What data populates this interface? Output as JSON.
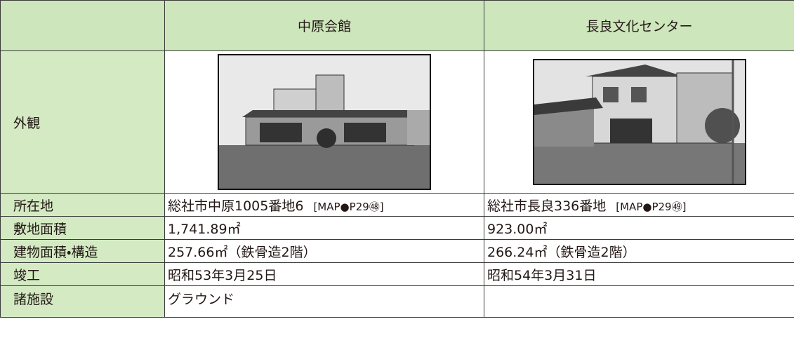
{
  "table": {
    "columns": [
      "中原会館",
      "長良文化センター"
    ],
    "rows": [
      {
        "label": "外観"
      },
      {
        "label": "所在地",
        "cells": [
          {
            "text": "総社市中原1005番地6",
            "map": "[MAP●P29㊽]"
          },
          {
            "text": "総社市長良336番地",
            "map": "[MAP●P29㊾]"
          }
        ]
      },
      {
        "label": "敷地面積",
        "cells": [
          "1,741.89㎡",
          "923.00㎡"
        ]
      },
      {
        "label": "建物面積・構造",
        "cells": [
          "257.66㎡（鉄骨造2階）",
          "266.24㎡（鉄骨造2階）"
        ]
      },
      {
        "label": "竣工",
        "cells": [
          "昭和53年3月25日",
          "昭和54年3月31日"
        ]
      },
      {
        "label": "諸施設",
        "cells": [
          "グラウンド"
        ]
      }
    ]
  }
}
